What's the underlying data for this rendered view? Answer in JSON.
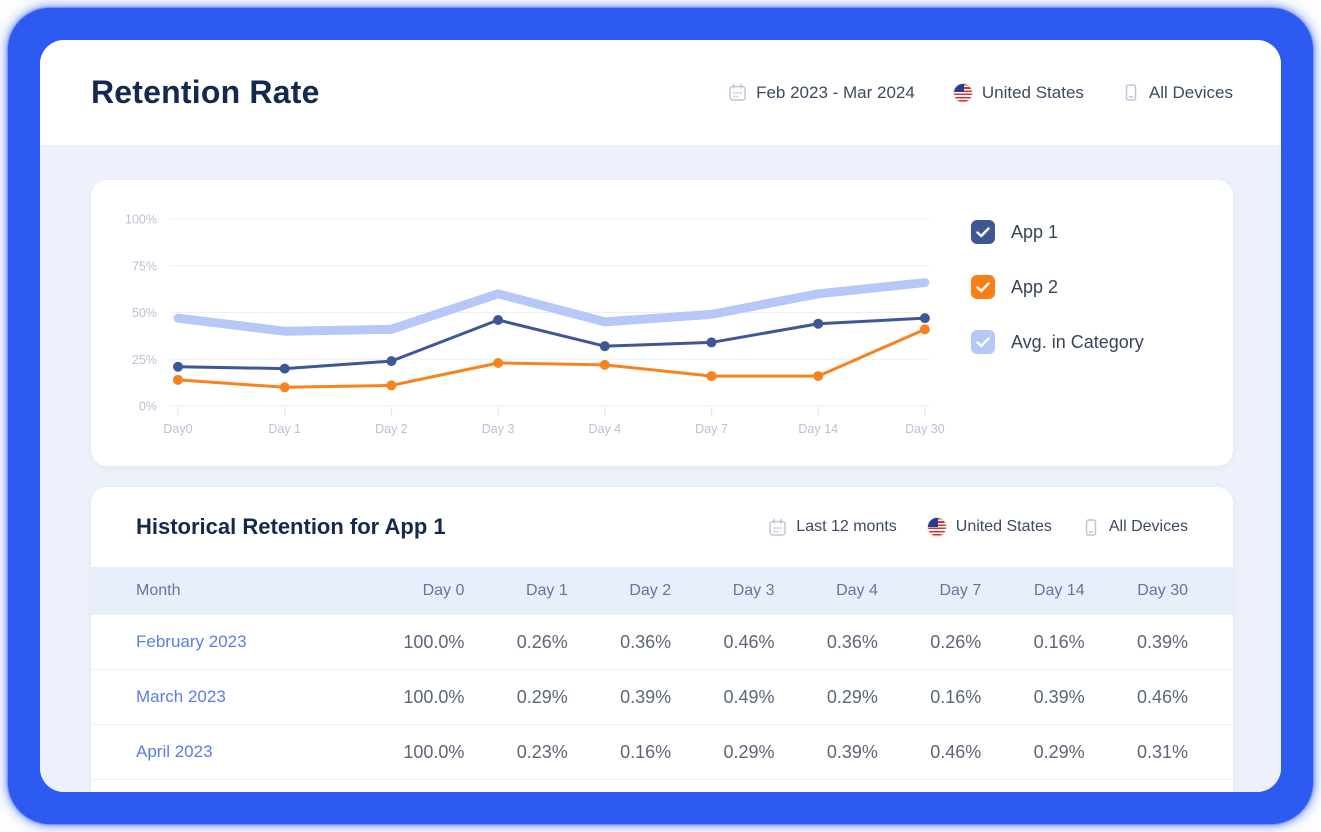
{
  "header": {
    "title": "Retention Rate",
    "filters": {
      "date_range": "Feb 2023 - Mar 2024",
      "country": "United States",
      "devices": "All Devices"
    }
  },
  "chart_card": {
    "legend": [
      {
        "label": "App 1",
        "color": "#3D5694",
        "checked": true
      },
      {
        "label": "App 2",
        "color": "#F97E16",
        "checked": true
      },
      {
        "label": "Avg. in Category",
        "color": "#B6C8F7",
        "checked": true
      }
    ]
  },
  "chart_data": {
    "type": "line",
    "categories": [
      "Day0",
      "Day 1",
      "Day 2",
      "Day 3",
      "Day 4",
      "Day 7",
      "Day 14",
      "Day 30"
    ],
    "y_tick_labels": [
      "100%",
      "75%",
      "50%",
      "25%",
      "0%"
    ],
    "y_tick_values": [
      100,
      75,
      50,
      25,
      0
    ],
    "ylim": [
      0,
      100
    ],
    "grid": true,
    "legend_position": "right",
    "series": [
      {
        "name": "Avg. in Category",
        "color": "#B6C8F7",
        "width": 9,
        "dots": false,
        "values": [
          47,
          40,
          41,
          60,
          45,
          49,
          60,
          66
        ]
      },
      {
        "name": "App 1",
        "color": "#3E5795",
        "width": 3,
        "dots": true,
        "values": [
          21,
          20,
          24,
          46,
          32,
          34,
          44,
          47
        ]
      },
      {
        "name": "App 2",
        "color": "#F8821E",
        "width": 3,
        "dots": true,
        "values": [
          14,
          10,
          11,
          23,
          22,
          16,
          16,
          41
        ]
      }
    ]
  },
  "table_card": {
    "title": "Historical Retention for App 1",
    "filters": {
      "date_range": "Last 12 monts",
      "country": "United States",
      "devices": "All Devices"
    },
    "columns": [
      "Month",
      "Day 0",
      "Day 1",
      "Day 2",
      "Day 3",
      "Day 4",
      "Day 7",
      "Day 14",
      "Day 30"
    ],
    "rows": [
      {
        "month": "February 2023",
        "values": [
          "100.0%",
          "0.26%",
          "0.36%",
          "0.46%",
          "0.36%",
          "0.26%",
          "0.16%",
          "0.39%"
        ]
      },
      {
        "month": "March 2023",
        "values": [
          "100.0%",
          "0.29%",
          "0.39%",
          "0.49%",
          "0.29%",
          "0.16%",
          "0.39%",
          "0.46%"
        ]
      },
      {
        "month": "April 2023",
        "values": [
          "100.0%",
          "0.23%",
          "0.16%",
          "0.29%",
          "0.39%",
          "0.46%",
          "0.29%",
          "0.31%"
        ]
      }
    ]
  },
  "colors": {
    "frame_blue": "#2D5AF0",
    "background_lavender": "#EDF1FB",
    "title_navy": "#14294E",
    "app1_navy": "#3E5795",
    "app2_orange": "#F8821E",
    "avg_light_blue": "#B6C8F7",
    "table_header_bg": "#E9EEFB",
    "month_link_blue": "#5B7CE8"
  }
}
